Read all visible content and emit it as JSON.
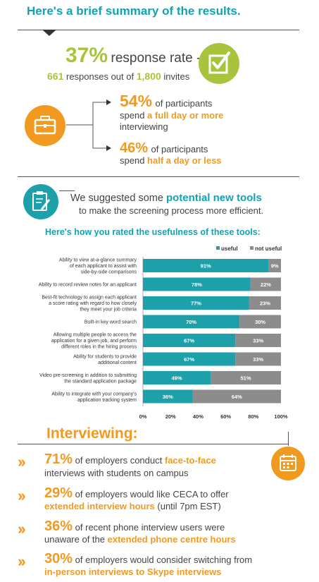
{
  "header": {
    "title": "Here's a brief summary of the results."
  },
  "response": {
    "rate_value": "37%",
    "rate_label": "response rate -",
    "responses_count": "661",
    "responses_mid": "responses out of",
    "invites_count": "1,800",
    "invites_label": "invites"
  },
  "participants": {
    "stat1_value": "54%",
    "stat1_line1": "of participants",
    "stat1_line2_pre": "spend",
    "stat1_line2_highlight": "a full day or more",
    "stat1_line3": "interviewing",
    "stat2_value": "46%",
    "stat2_line1": "of participants",
    "stat2_line2_pre": "spend",
    "stat2_line2_highlight": "half a day or less"
  },
  "tools": {
    "line1_pre": "We suggested some",
    "line1_highlight": "potential new tools",
    "line2": "to make the screening process more efficient."
  },
  "chart_data": {
    "type": "bar",
    "orientation": "horizontal",
    "stacked": true,
    "title": "Here's how you rated the usefulness of these tools:",
    "categories": [
      "Ability to view at-a-glance summary|of each applicant to assist with|side-by-side comparisons",
      "Ability to record review notes for an applicant",
      "Best-fit technology to assign each applicant|a score rating with regard to how closely|they meet your job criteria",
      "Built-in key word search",
      "Allowing multiple people to access the|application for a given job, and perform|different roles in the hiring process",
      "Ability for students to provide|additional content",
      "Video pre-screening in addition to submitting|the standard application package",
      "Ability to integrate with your company's|application tracking system"
    ],
    "series": [
      {
        "name": "useful",
        "color": "#1ea0ab",
        "values": [
          91,
          78,
          77,
          70,
          67,
          67,
          49,
          36
        ]
      },
      {
        "name": "not useful",
        "color": "#8c8c8c",
        "values": [
          9,
          22,
          23,
          30,
          33,
          33,
          51,
          64
        ]
      }
    ],
    "xlim": [
      0,
      100
    ],
    "xticks": [
      "0%",
      "20%",
      "40%",
      "60%",
      "80%",
      "100%"
    ],
    "legend": "top-right"
  },
  "interviewing": {
    "title": "Interviewing:",
    "items": [
      {
        "value": "71%",
        "l1_pre": "of employers conduct",
        "l1_hl": "face-to-face",
        "l2_pre": "interviews with students on campus",
        "l2_hl": "",
        "l2_post": ""
      },
      {
        "value": "29%",
        "l1_pre": "of employers would like CECA to offer",
        "l1_hl": "",
        "l2_pre": "",
        "l2_hl": "extended interview hours",
        "l2_post": "(until 7pm EST)"
      },
      {
        "value": "36%",
        "l1_pre": "of recent phone interview users were",
        "l1_hl": "",
        "l2_pre": "unaware of the",
        "l2_hl": "extended phone centre hours",
        "l2_post": ""
      },
      {
        "value": "30%",
        "l1_pre": "of employers would consider switching from",
        "l1_hl": "",
        "l2_pre": "",
        "l2_hl": "in-person interviews to Skype interviews",
        "l2_post": ""
      }
    ]
  },
  "icons": [
    "checkbox-icon",
    "briefcase-icon",
    "clipboard-pencil-icon",
    "calendar-icon",
    "chevron-right-icon"
  ],
  "colors": {
    "teal": "#11a3b3",
    "orange": "#f29a1f",
    "lime": "#a8c43c",
    "grey": "#8c8c8c"
  }
}
